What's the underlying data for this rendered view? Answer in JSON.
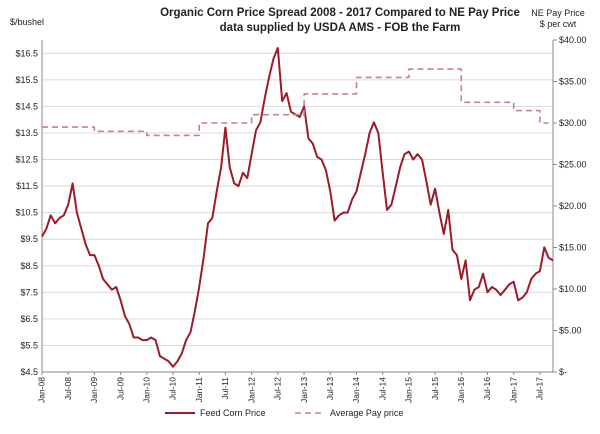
{
  "chart_data": {
    "type": "line",
    "title": "Organic Corn Price Spread 2008 - 2017 Compared to NE Pay Price",
    "subtitle": "data supplied by USDA AMS - FOB the Farm",
    "y_left_label": "$/bushel",
    "y_right_label_line1": "NE Pay Price",
    "y_right_label_line2": "$ per cwt",
    "ylim_left": [
      4.5,
      17
    ],
    "ylim_right": [
      0,
      40
    ],
    "grid": true,
    "legend_position": "bottom",
    "y_left_ticks": [
      4.5,
      5.5,
      6.5,
      7.5,
      8.5,
      9.5,
      10.5,
      11.5,
      12.5,
      13.5,
      14.5,
      15.5,
      16.5
    ],
    "y_left_tick_labels": [
      "$4.5",
      "$5.5",
      "$6.5",
      "$7.5",
      "$8.5",
      "$9.5",
      "$10.5",
      "$11.5",
      "$12.5",
      "$13.5",
      "$14.5",
      "$15.5",
      "$16.5"
    ],
    "y_right_ticks": [
      0,
      5,
      10,
      15,
      20,
      25,
      30,
      35,
      40
    ],
    "y_right_tick_labels": [
      "$-",
      "$5.00",
      "$10.00",
      "$15.00",
      "$20.00",
      "$25.00",
      "$30.00",
      "$35.00",
      "$40.00"
    ],
    "x_ticks": [
      0,
      6,
      12,
      18,
      24,
      30,
      36,
      42,
      48,
      54,
      60,
      66,
      72,
      78,
      84,
      90,
      96,
      102,
      108,
      114
    ],
    "x_tick_labels": [
      "Jan-08",
      "Jul-08",
      "Jan-09",
      "Jul-09",
      "Jan-10",
      "Jul-10",
      "Jan-11",
      "Jul-11",
      "Jan-12",
      "Jul-12",
      "Jan-13",
      "Jul-13",
      "Jan-14",
      "Jul-14",
      "Jan-15",
      "Jul-15",
      "Jan-16",
      "Jul-16",
      "Jan-17",
      "Jul-17"
    ],
    "x_range": [
      0,
      117
    ],
    "series": [
      {
        "name": "Feed Corn Price",
        "axis": "left",
        "color": "#9b1b2a",
        "style": "solid",
        "x": [
          0,
          1,
          2,
          3,
          4,
          5,
          6,
          7,
          8,
          9,
          10,
          11,
          12,
          13,
          14,
          15,
          16,
          17,
          18,
          19,
          20,
          21,
          22,
          23,
          24,
          25,
          26,
          27,
          28,
          29,
          30,
          31,
          32,
          33,
          34,
          35,
          36,
          37,
          38,
          39,
          40,
          41,
          42,
          43,
          44,
          45,
          46,
          47,
          48,
          49,
          50,
          51,
          52,
          53,
          54,
          55,
          56,
          57,
          58,
          59,
          60,
          61,
          62,
          63,
          64,
          65,
          66,
          67,
          68,
          69,
          70,
          71,
          72,
          73,
          74,
          75,
          76,
          77,
          78,
          79,
          80,
          81,
          82,
          83,
          84,
          85,
          86,
          87,
          88,
          89,
          90,
          91,
          92,
          93,
          94,
          95,
          96,
          97,
          98,
          99,
          100,
          101,
          102,
          103,
          104,
          105,
          106,
          107,
          108,
          109,
          110,
          111,
          112,
          113,
          114,
          115,
          116,
          117
        ],
        "values": [
          9.6,
          9.9,
          10.4,
          10.1,
          10.3,
          10.4,
          10.8,
          11.6,
          10.5,
          9.9,
          9.3,
          8.9,
          8.9,
          8.5,
          8.0,
          7.8,
          7.6,
          7.7,
          7.2,
          6.6,
          6.3,
          5.8,
          5.8,
          5.7,
          5.7,
          5.8,
          5.7,
          5.1,
          5.0,
          4.9,
          4.7,
          4.9,
          5.2,
          5.7,
          6.0,
          6.8,
          7.7,
          8.8,
          10.1,
          10.3,
          11.3,
          12.2,
          13.7,
          12.2,
          11.6,
          11.5,
          12.0,
          11.8,
          12.7,
          13.6,
          13.9,
          14.8,
          15.6,
          16.3,
          16.7,
          14.7,
          15.0,
          14.3,
          14.2,
          14.1,
          14.5,
          13.3,
          13.1,
          12.6,
          12.5,
          12.1,
          11.3,
          10.2,
          10.4,
          10.5,
          10.5,
          11.0,
          11.3,
          12.0,
          12.7,
          13.5,
          13.9,
          13.5,
          12.0,
          10.6,
          10.8,
          11.5,
          12.2,
          12.7,
          12.8,
          12.5,
          12.7,
          12.5,
          11.7,
          10.8,
          11.4,
          10.5,
          9.7,
          10.6,
          9.1,
          8.9,
          8.0,
          8.7,
          7.2,
          7.6,
          7.7,
          8.2,
          7.5,
          7.7,
          7.6,
          7.4,
          7.6,
          7.8,
          7.9,
          7.2,
          7.3,
          7.5,
          8.0,
          8.2,
          8.3,
          9.2,
          8.8,
          8.7
        ]
      },
      {
        "name": "Average Pay price",
        "axis": "right",
        "color": "#c97f91",
        "style": "dashed",
        "x": [
          0,
          6,
          6,
          12,
          12,
          18,
          18,
          24,
          24,
          30,
          30,
          36,
          36,
          42,
          42,
          48,
          48,
          54,
          54,
          60,
          60,
          66,
          66,
          72,
          72,
          78,
          78,
          84,
          84,
          90,
          90,
          96,
          96,
          102,
          102,
          108,
          108,
          114,
          114,
          116
        ],
        "values": [
          29.5,
          29.5,
          29.5,
          29.5,
          29.0,
          29.0,
          29.0,
          29.0,
          28.5,
          28.5,
          28.5,
          28.5,
          30.0,
          30.0,
          30.0,
          30.0,
          31.0,
          31.0,
          31.0,
          31.0,
          33.5,
          33.5,
          33.5,
          33.5,
          35.5,
          35.5,
          35.5,
          35.5,
          36.5,
          36.5,
          36.5,
          36.5,
          32.5,
          32.5,
          32.5,
          32.5,
          31.5,
          31.5,
          30.0,
          30.0
        ]
      }
    ]
  }
}
